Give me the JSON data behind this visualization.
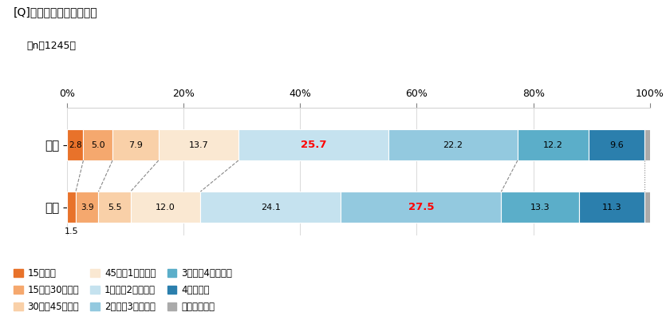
{
  "title_line1": "[Q]妻が家事に費やす時間",
  "title_line2": "（n＝1245）",
  "rows": [
    "平日",
    "休日"
  ],
  "categories": [
    "15分未満",
    "15分〜30分未満",
    "30分〜45分未満",
    "45分〜1時間未満",
    "1時間〜2時間未満",
    "2時間〜3時間未満",
    "3時間〜4時間未満",
    "4時間以上",
    "家事はしない"
  ],
  "colors": [
    "#E8722A",
    "#F5A86E",
    "#F9D0A8",
    "#FAE8D2",
    "#C5E2EF",
    "#93C9DF",
    "#5BAEC9",
    "#2B7FAD",
    "#AAAAAA"
  ],
  "data": {
    "平日": [
      2.8,
      5.0,
      7.9,
      13.7,
      25.7,
      22.2,
      12.2,
      9.6,
      1.0
    ],
    "休日": [
      1.5,
      3.9,
      5.5,
      12.0,
      24.1,
      27.5,
      13.3,
      11.3,
      1.0
    ]
  },
  "highlight_color": "#FF0000",
  "bg_color": "#FFFFFF",
  "bar_height": 0.5,
  "xlim": [
    0,
    100
  ],
  "xticks": [
    0,
    20,
    40,
    60,
    80,
    100
  ],
  "xtick_labels": [
    "0%",
    "20%",
    "40%",
    "60%",
    "80%",
    "100%"
  ]
}
